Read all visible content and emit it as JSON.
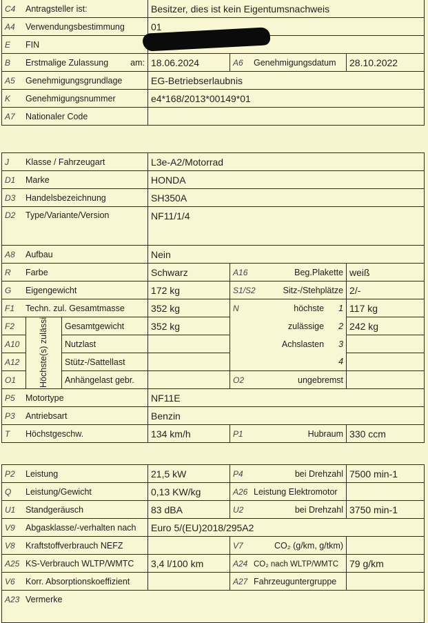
{
  "section1": {
    "c4": {
      "code": "C4",
      "label": "Antragsteller ist:",
      "value": "Besitzer, dies ist kein Eigentumsnachweis"
    },
    "a4": {
      "code": "A4",
      "label": "Verwendungsbestimmung",
      "value": "01"
    },
    "e": {
      "code": "E",
      "label": "FIN"
    },
    "b": {
      "code": "B",
      "label": "Erstmalige Zulassung",
      "suffix": "am:",
      "value": "18.06.2024"
    },
    "a6": {
      "code": "A6",
      "label": "Genehmigungsdatum",
      "value": "28.10.2022"
    },
    "a5": {
      "code": "A5",
      "label": "Genehmigungsgrundlage",
      "value": "EG-Betriebserlaubnis"
    },
    "k": {
      "code": "K",
      "label": "Genehmigungsnummer",
      "value": "e4*168/2013*00149*01"
    },
    "a7": {
      "code": "A7",
      "label": "Nationaler Code",
      "value": ""
    }
  },
  "section2": {
    "j": {
      "code": "J",
      "label": "Klasse / Fahrzeugart",
      "value": "L3e-A2/Motorrad"
    },
    "d1": {
      "code": "D1",
      "label": "Marke",
      "value": "HONDA"
    },
    "d3": {
      "code": "D3",
      "label": "Handelsbezeichnung",
      "value": "SH350A"
    },
    "d2": {
      "code": "D2",
      "label": "Type/Variante/Version",
      "value": "NF11/1/4"
    },
    "a8": {
      "code": "A8",
      "label": "Aufbau",
      "value": "Nein"
    },
    "r": {
      "code": "R",
      "label": "Farbe",
      "value": "Schwarz"
    },
    "a16": {
      "code": "A16",
      "label": "Beg.Plakette",
      "value": "weiß"
    },
    "g": {
      "code": "G",
      "label": "Eigengewicht",
      "value": "172  kg"
    },
    "s1s2": {
      "code": "S1/S2",
      "label": "Sitz-/Stehplätze",
      "value": "2/-"
    },
    "f1": {
      "code": "F1",
      "label": "Techn. zul. Gesamtmasse",
      "value": "352  kg"
    },
    "group_label": "Höchste(s) zulässige(s)",
    "f2": {
      "code": "F2",
      "label": "Gesamtgewicht",
      "value": "352  kg"
    },
    "a10": {
      "code": "A10",
      "label": "Nutzlast",
      "value": ""
    },
    "a12": {
      "code": "A12",
      "label": "Stütz-/Sattellast",
      "value": ""
    },
    "o1": {
      "code": "O1",
      "label": "Anhängelast gebr.",
      "value": ""
    },
    "n": {
      "code": "N",
      "lines": [
        "höchste",
        "zulässige",
        "Achslasten",
        ""
      ],
      "axles": [
        "1",
        "2",
        "3",
        "4"
      ],
      "values": [
        "117 kg",
        "242 kg",
        "",
        ""
      ]
    },
    "o2": {
      "code": "O2",
      "label": "ungebremst",
      "value": ""
    },
    "p5": {
      "code": "P5",
      "label": "Motortype",
      "value": "NF11E"
    },
    "p3": {
      "code": "P3",
      "label": "Antriebsart",
      "value": "Benzin"
    },
    "t": {
      "code": "T",
      "label": "Höchstgeschw.",
      "value": "134 km/h"
    },
    "p1": {
      "code": "P1",
      "label": "Hubraum",
      "value": "330 ccm"
    }
  },
  "section3": {
    "p2": {
      "code": "P2",
      "label": "Leistung",
      "value": "21,5 kW"
    },
    "p4": {
      "code": "P4",
      "label": "bei Drehzahl",
      "value": "7500 min-1"
    },
    "q": {
      "code": "Q",
      "label": "Leistung/Gewicht",
      "value": "0,13 KW/kg"
    },
    "a26": {
      "code": "A26",
      "label": "Leistung Elektromotor",
      "value": ""
    },
    "u1": {
      "code": "U1",
      "label": "Standgeräusch",
      "value": "83 dBA"
    },
    "u2": {
      "code": "U2",
      "label": "bei Drehzahl",
      "value": "3750 min-1"
    },
    "v9": {
      "code": "V9",
      "label": "Abgasklasse/-verhalten nach",
      "value": "Euro 5/(EU)2018/295A2"
    },
    "v8": {
      "code": "V8",
      "label": "Kraftstoffverbrauch NEFZ",
      "value": ""
    },
    "v7": {
      "code": "V7",
      "label": "CO₂ (g/km, g/tkm)",
      "value": ""
    },
    "a25": {
      "code": "A25",
      "label": "KS-Verbrauch WLTP/WMTC",
      "value": "3,4  l/100 km"
    },
    "a24": {
      "code": "A24",
      "label": "CO₂ nach WLTP/WMTC",
      "value": "79  g/km"
    },
    "v6": {
      "code": "V6",
      "label": "Korr. Absorptionskoeffizient",
      "value": ""
    },
    "a27": {
      "code": "A27",
      "label": "Fahrzeuguntergruppe",
      "value": ""
    },
    "a23": {
      "code": "A23",
      "label": "Vermerke",
      "value": ""
    }
  }
}
